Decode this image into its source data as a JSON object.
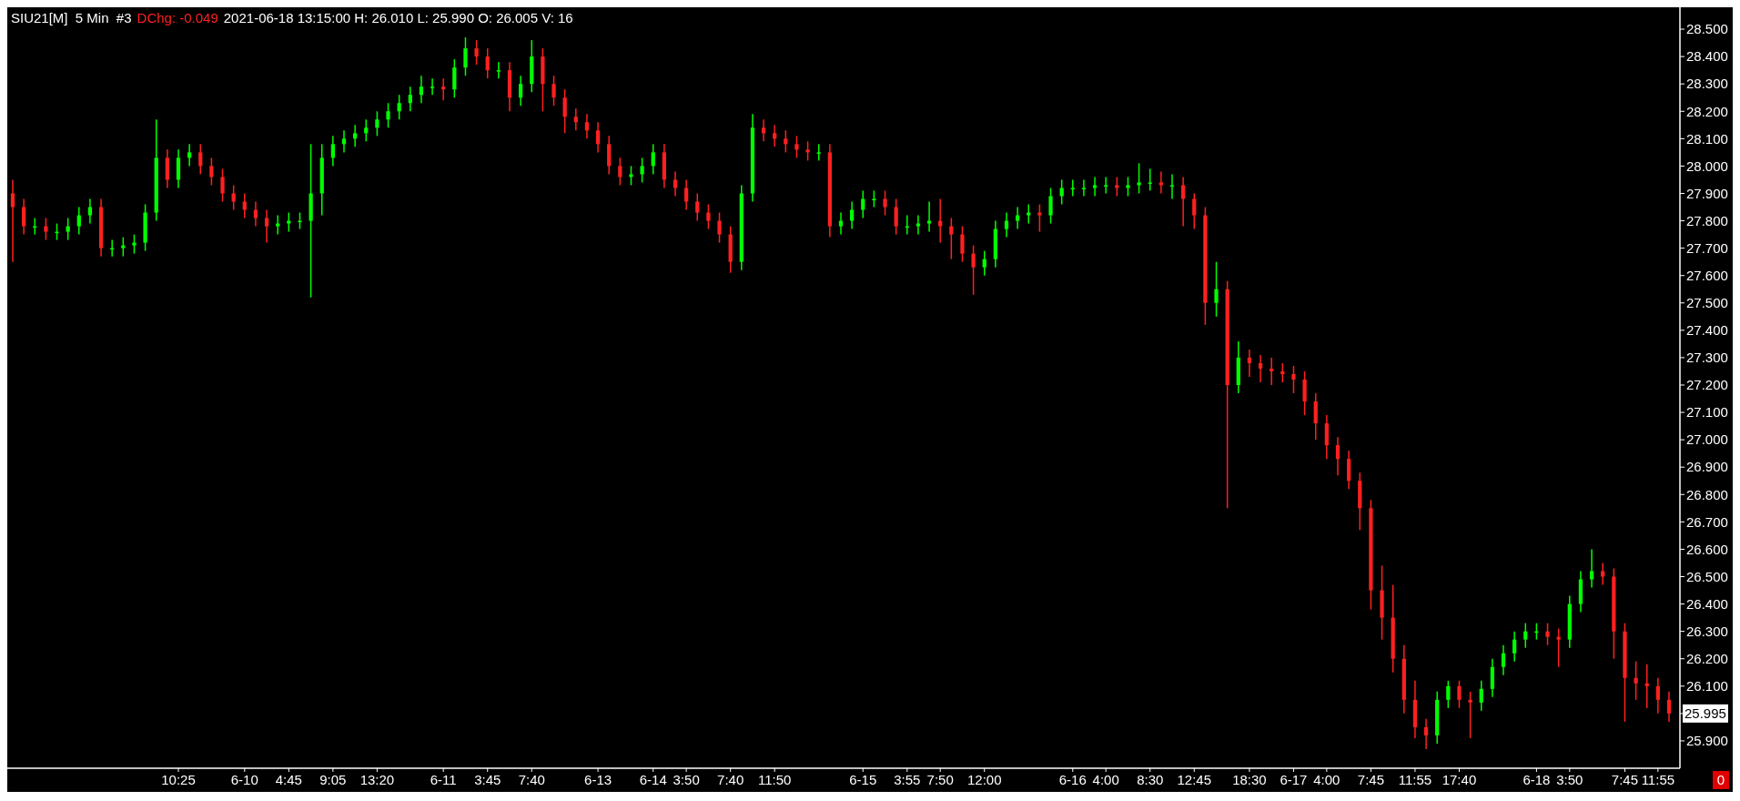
{
  "chart_data": {
    "type": "candlestick",
    "title": "SIU21[M]  5 Min  #3",
    "annotations": [
      "DChg: -0.049",
      "2021-06-18 13:15:00 H: 26.010 L: 25.990 O: 26.005 V: 16",
      "0",
      "25.995"
    ],
    "categories": [
      null,
      null,
      null,
      null,
      null,
      null,
      null,
      null,
      null,
      null,
      null,
      null,
      null,
      null,
      null,
      "10:25",
      null,
      null,
      null,
      null,
      null,
      "6-10",
      null,
      null,
      null,
      "4:45",
      null,
      null,
      null,
      "9:05",
      null,
      null,
      null,
      "13:20",
      null,
      null,
      null,
      null,
      null,
      "6-11",
      null,
      null,
      null,
      "3:45",
      null,
      null,
      null,
      "7:40",
      null,
      null,
      null,
      null,
      null,
      "6-13",
      null,
      null,
      null,
      null,
      "6-14",
      null,
      null,
      "3:50",
      null,
      null,
      null,
      "7:40",
      null,
      null,
      null,
      "11:50",
      null,
      null,
      null,
      null,
      null,
      null,
      null,
      "6-15",
      null,
      null,
      null,
      "3:55",
      null,
      null,
      "7:50",
      null,
      null,
      null,
      "12:00",
      null,
      null,
      null,
      null,
      null,
      null,
      null,
      "6-16",
      null,
      null,
      "4:00",
      null,
      null,
      null,
      "8:30",
      null,
      null,
      null,
      "12:45",
      null,
      null,
      null,
      null,
      "18:30",
      null,
      null,
      null,
      "6-17",
      null,
      null,
      "4:00",
      null,
      null,
      null,
      "7:45",
      null,
      null,
      null,
      "11:55",
      null,
      null,
      null,
      "17:40",
      null,
      null,
      null,
      null,
      null,
      null,
      "6-18",
      null,
      null,
      "3:50",
      null,
      null,
      null,
      null,
      "7:45",
      null,
      null,
      "11:55",
      null
    ],
    "ohlc": [
      [
        27.9,
        27.95,
        27.65,
        27.85
      ],
      [
        27.85,
        27.88,
        27.75,
        27.78
      ],
      [
        27.78,
        27.81,
        27.75,
        27.78
      ],
      [
        27.78,
        27.81,
        27.73,
        27.76
      ],
      [
        27.76,
        27.79,
        27.73,
        27.76
      ],
      [
        27.76,
        27.81,
        27.73,
        27.78
      ],
      [
        27.78,
        27.85,
        27.75,
        27.82
      ],
      [
        27.82,
        27.88,
        27.79,
        27.85
      ],
      [
        27.85,
        27.88,
        27.67,
        27.7
      ],
      [
        27.7,
        27.73,
        27.67,
        27.7
      ],
      [
        27.7,
        27.74,
        27.67,
        27.71
      ],
      [
        27.71,
        27.75,
        27.68,
        27.72
      ],
      [
        27.72,
        27.86,
        27.69,
        27.83
      ],
      [
        27.83,
        28.17,
        27.8,
        28.03
      ],
      [
        28.03,
        28.06,
        27.92,
        27.95
      ],
      [
        27.95,
        28.06,
        27.92,
        28.03
      ],
      [
        28.03,
        28.08,
        28.0,
        28.05
      ],
      [
        28.05,
        28.08,
        27.97,
        28.0
      ],
      [
        28.0,
        28.03,
        27.93,
        27.96
      ],
      [
        27.96,
        27.99,
        27.87,
        27.9
      ],
      [
        27.9,
        27.93,
        27.84,
        27.87
      ],
      [
        27.87,
        27.9,
        27.81,
        27.84
      ],
      [
        27.84,
        27.87,
        27.78,
        27.81
      ],
      [
        27.81,
        27.84,
        27.72,
        27.78
      ],
      [
        27.78,
        27.82,
        27.75,
        27.79
      ],
      [
        27.79,
        27.83,
        27.76,
        27.8
      ],
      [
        27.8,
        27.83,
        27.77,
        27.8
      ],
      [
        27.8,
        28.08,
        27.52,
        27.9
      ],
      [
        27.9,
        28.08,
        27.82,
        28.03
      ],
      [
        28.03,
        28.11,
        28.0,
        28.08
      ],
      [
        28.08,
        28.13,
        28.05,
        28.1
      ],
      [
        28.1,
        28.15,
        28.07,
        28.12
      ],
      [
        28.12,
        28.17,
        28.09,
        28.14
      ],
      [
        28.14,
        28.2,
        28.11,
        28.17
      ],
      [
        28.17,
        28.23,
        28.14,
        28.2
      ],
      [
        28.2,
        28.26,
        28.17,
        28.23
      ],
      [
        28.23,
        28.29,
        28.2,
        28.26
      ],
      [
        28.26,
        28.33,
        28.23,
        28.29
      ],
      [
        28.29,
        28.32,
        28.26,
        28.29
      ],
      [
        28.29,
        28.32,
        28.24,
        28.28
      ],
      [
        28.28,
        28.39,
        28.25,
        28.36
      ],
      [
        28.36,
        28.47,
        28.33,
        28.43
      ],
      [
        28.43,
        28.46,
        28.37,
        28.4
      ],
      [
        28.4,
        28.43,
        28.32,
        28.35
      ],
      [
        28.35,
        28.38,
        28.32,
        28.35
      ],
      [
        28.35,
        28.38,
        28.2,
        28.25
      ],
      [
        28.25,
        28.33,
        28.22,
        28.3
      ],
      [
        28.3,
        28.46,
        28.27,
        28.4
      ],
      [
        28.4,
        28.43,
        28.2,
        28.3
      ],
      [
        28.3,
        28.33,
        28.22,
        28.25
      ],
      [
        28.25,
        28.28,
        28.12,
        28.18
      ],
      [
        28.18,
        28.21,
        28.13,
        28.16
      ],
      [
        28.16,
        28.19,
        28.1,
        28.13
      ],
      [
        28.13,
        28.16,
        28.05,
        28.08
      ],
      [
        28.08,
        28.11,
        27.97,
        28.0
      ],
      [
        28.0,
        28.03,
        27.93,
        27.96
      ],
      [
        27.96,
        28.0,
        27.93,
        27.97
      ],
      [
        27.97,
        28.03,
        27.94,
        28.0
      ],
      [
        28.0,
        28.08,
        27.97,
        28.05
      ],
      [
        28.05,
        28.08,
        27.92,
        27.95
      ],
      [
        27.95,
        27.98,
        27.89,
        27.92
      ],
      [
        27.92,
        27.95,
        27.84,
        27.87
      ],
      [
        27.87,
        27.9,
        27.8,
        27.83
      ],
      [
        27.83,
        27.86,
        27.77,
        27.8
      ],
      [
        27.8,
        27.83,
        27.72,
        27.75
      ],
      [
        27.75,
        27.78,
        27.61,
        27.65
      ],
      [
        27.65,
        27.93,
        27.62,
        27.9
      ],
      [
        27.9,
        28.19,
        27.87,
        28.14
      ],
      [
        28.14,
        28.17,
        28.09,
        28.12
      ],
      [
        28.12,
        28.15,
        28.07,
        28.1
      ],
      [
        28.1,
        28.13,
        28.05,
        28.08
      ],
      [
        28.08,
        28.11,
        28.03,
        28.06
      ],
      [
        28.06,
        28.09,
        28.02,
        28.05
      ],
      [
        28.05,
        28.08,
        28.02,
        28.05
      ],
      [
        28.05,
        28.08,
        27.74,
        27.78
      ],
      [
        27.78,
        27.83,
        27.75,
        27.8
      ],
      [
        27.8,
        27.87,
        27.77,
        27.84
      ],
      [
        27.84,
        27.91,
        27.81,
        27.88
      ],
      [
        27.88,
        27.91,
        27.85,
        27.88
      ],
      [
        27.88,
        27.91,
        27.82,
        27.85
      ],
      [
        27.85,
        27.88,
        27.75,
        27.78
      ],
      [
        27.78,
        27.82,
        27.75,
        27.78
      ],
      [
        27.78,
        27.82,
        27.75,
        27.79
      ],
      [
        27.79,
        27.87,
        27.76,
        27.8
      ],
      [
        27.8,
        27.88,
        27.72,
        27.78
      ],
      [
        27.78,
        27.81,
        27.66,
        27.75
      ],
      [
        27.75,
        27.78,
        27.65,
        27.68
      ],
      [
        27.68,
        27.71,
        27.53,
        27.63
      ],
      [
        27.63,
        27.69,
        27.6,
        27.66
      ],
      [
        27.66,
        27.8,
        27.63,
        27.77
      ],
      [
        27.77,
        27.83,
        27.74,
        27.8
      ],
      [
        27.8,
        27.85,
        27.77,
        27.82
      ],
      [
        27.82,
        27.86,
        27.79,
        27.83
      ],
      [
        27.83,
        27.86,
        27.76,
        27.82
      ],
      [
        27.82,
        27.92,
        27.79,
        27.89
      ],
      [
        27.89,
        27.95,
        27.86,
        27.92
      ],
      [
        27.92,
        27.95,
        27.89,
        27.92
      ],
      [
        27.92,
        27.95,
        27.89,
        27.92
      ],
      [
        27.92,
        27.96,
        27.89,
        27.93
      ],
      [
        27.93,
        27.96,
        27.9,
        27.93
      ],
      [
        27.93,
        27.96,
        27.89,
        27.92
      ],
      [
        27.92,
        27.96,
        27.89,
        27.93
      ],
      [
        27.93,
        28.01,
        27.9,
        27.94
      ],
      [
        27.94,
        27.99,
        27.91,
        27.94
      ],
      [
        27.94,
        27.98,
        27.9,
        27.93
      ],
      [
        27.93,
        27.97,
        27.88,
        27.93
      ],
      [
        27.93,
        27.96,
        27.78,
        27.88
      ],
      [
        27.88,
        27.9,
        27.77,
        27.82
      ],
      [
        27.82,
        27.85,
        27.42,
        27.5
      ],
      [
        27.5,
        27.65,
        27.45,
        27.55
      ],
      [
        27.55,
        27.58,
        26.75,
        27.2
      ],
      [
        27.2,
        27.36,
        27.17,
        27.3
      ],
      [
        27.3,
        27.33,
        27.23,
        27.28
      ],
      [
        27.28,
        27.31,
        27.21,
        27.26
      ],
      [
        27.26,
        27.3,
        27.2,
        27.25
      ],
      [
        27.25,
        27.28,
        27.21,
        27.24
      ],
      [
        27.24,
        27.27,
        27.17,
        27.22
      ],
      [
        27.22,
        27.25,
        27.09,
        27.14
      ],
      [
        27.14,
        27.17,
        27.0,
        27.06
      ],
      [
        27.06,
        27.09,
        26.93,
        26.98
      ],
      [
        26.98,
        27.01,
        26.87,
        26.93
      ],
      [
        26.93,
        26.96,
        26.82,
        26.85
      ],
      [
        26.85,
        26.88,
        26.67,
        26.75
      ],
      [
        26.75,
        26.78,
        26.38,
        26.45
      ],
      [
        26.45,
        26.54,
        26.27,
        26.35
      ],
      [
        26.35,
        26.47,
        26.15,
        26.2
      ],
      [
        26.2,
        26.25,
        26.0,
        26.05
      ],
      [
        26.05,
        26.12,
        25.91,
        25.95
      ],
      [
        25.95,
        25.98,
        25.87,
        25.92
      ],
      [
        25.92,
        26.08,
        25.89,
        26.05
      ],
      [
        26.05,
        26.12,
        26.02,
        26.1
      ],
      [
        26.1,
        26.12,
        26.02,
        26.05
      ],
      [
        26.05,
        26.08,
        25.91,
        26.04
      ],
      [
        26.04,
        26.12,
        26.01,
        26.09
      ],
      [
        26.09,
        26.2,
        26.06,
        26.17
      ],
      [
        26.17,
        26.25,
        26.14,
        26.22
      ],
      [
        26.22,
        26.3,
        26.19,
        26.27
      ],
      [
        26.27,
        26.33,
        26.24,
        26.3
      ],
      [
        26.3,
        26.33,
        26.27,
        26.3
      ],
      [
        26.3,
        26.33,
        26.25,
        26.28
      ],
      [
        26.28,
        26.31,
        26.17,
        26.27
      ],
      [
        26.27,
        26.43,
        26.24,
        26.4
      ],
      [
        26.4,
        26.52,
        26.37,
        26.49
      ],
      [
        26.49,
        26.6,
        26.46,
        26.52
      ],
      [
        26.52,
        26.55,
        26.47,
        26.5
      ],
      [
        26.5,
        26.53,
        26.2,
        26.3
      ],
      [
        26.3,
        26.33,
        25.97,
        26.13
      ],
      [
        26.13,
        26.19,
        26.05,
        26.11
      ],
      [
        26.11,
        26.18,
        26.02,
        26.1
      ],
      [
        26.1,
        26.13,
        26.0,
        26.05
      ],
      [
        26.05,
        26.08,
        25.97,
        26.0
      ]
    ],
    "ylim": [
      25.8,
      28.58
    ],
    "yticks": [
      {
        "value": 25.9,
        "label": "25.900"
      },
      {
        "value": 26.0,
        "label": null
      },
      {
        "value": 26.1,
        "label": "26.100"
      },
      {
        "value": 26.2,
        "label": "26.200"
      },
      {
        "value": 26.3,
        "label": "26.300"
      },
      {
        "value": 26.4,
        "label": "26.400"
      },
      {
        "value": 26.5,
        "label": "26.500"
      },
      {
        "value": 26.6,
        "label": "26.600"
      },
      {
        "value": 26.7,
        "label": "26.700"
      },
      {
        "value": 26.8,
        "label": "26.800"
      },
      {
        "value": 26.9,
        "label": "26.900"
      },
      {
        "value": 27.0,
        "label": "27.000"
      },
      {
        "value": 27.1,
        "label": "27.100"
      },
      {
        "value": 27.2,
        "label": "27.200"
      },
      {
        "value": 27.3,
        "label": "27.300"
      },
      {
        "value": 27.4,
        "label": "27.400"
      },
      {
        "value": 27.5,
        "label": "27.500"
      },
      {
        "value": 27.6,
        "label": "27.600"
      },
      {
        "value": 27.7,
        "label": "27.700"
      },
      {
        "value": 27.8,
        "label": "27.800"
      },
      {
        "value": 27.9,
        "label": "27.900"
      },
      {
        "value": 28.0,
        "label": "28.000"
      },
      {
        "value": 28.1,
        "label": "28.100"
      },
      {
        "value": 28.2,
        "label": "28.200"
      },
      {
        "value": 28.3,
        "label": "28.300"
      },
      {
        "value": 28.4,
        "label": "28.400"
      },
      {
        "value": 28.5,
        "label": "28.500"
      }
    ]
  }
}
